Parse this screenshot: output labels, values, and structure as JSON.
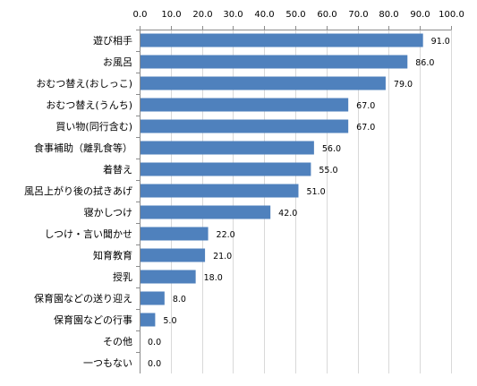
{
  "chart_data": {
    "type": "bar",
    "orientation": "horizontal",
    "categories": [
      "遊び相手",
      "お風呂",
      "おむつ替え(おしっこ)",
      "おむつ替え(うんち)",
      "買い物(同行含む)",
      "食事補助（離乳食等）",
      "着替え",
      "風呂上がり後の拭きあげ",
      "寝かしつけ",
      "しつけ・言い聞かせ",
      "知育教育",
      "授乳",
      "保育園などの送り迎え",
      "保育園などの行事",
      "その他",
      "一つもない"
    ],
    "values": [
      91.0,
      86.0,
      79.0,
      67.0,
      67.0,
      56.0,
      55.0,
      51.0,
      42.0,
      22.0,
      21.0,
      18.0,
      8.0,
      5.0,
      0.0,
      0.0
    ],
    "value_labels": [
      "91.0",
      "86.0",
      "79.0",
      "67.0",
      "67.0",
      "56.0",
      "55.0",
      "51.0",
      "42.0",
      "22.0",
      "21.0",
      "18.0",
      "8.0",
      "5.0",
      "0.0",
      "0.0"
    ],
    "xlim": [
      0,
      100
    ],
    "x_ticks": [
      "0.0",
      "10.0",
      "20.0",
      "30.0",
      "40.0",
      "50.0",
      "60.0",
      "70.0",
      "80.0",
      "90.0",
      "100.0"
    ],
    "x_axis_position": "top",
    "grid": true,
    "legend": "none",
    "bar_color": "#4f81bd",
    "grid_color": "#d9d9d9",
    "axis_color": "#8c8c8c"
  }
}
